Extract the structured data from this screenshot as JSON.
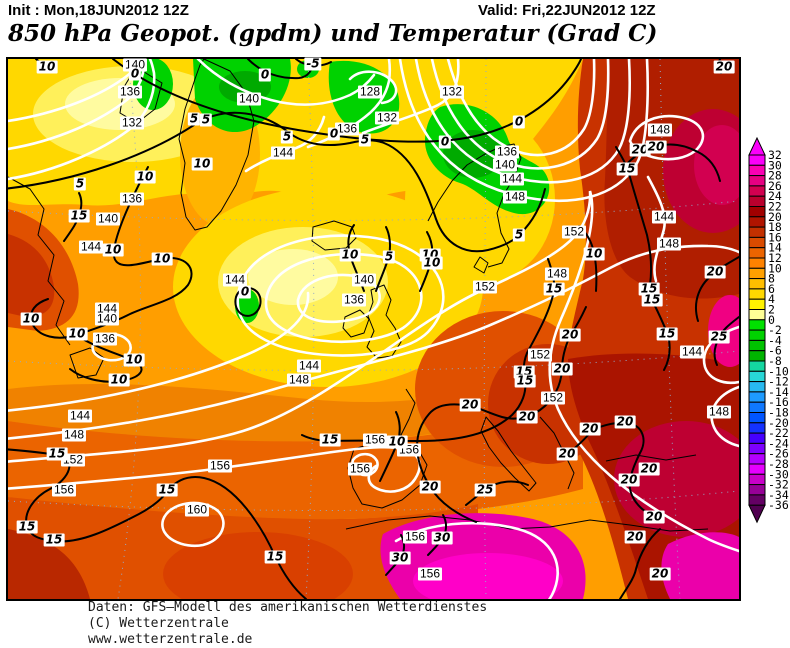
{
  "header": {
    "init": "Init : Mon,18JUN2012 12Z",
    "valid": "Valid: Fri,22JUN2012 12Z",
    "title": "850 hPa Geopot. (gpdm) und Temperatur (Grad C)"
  },
  "footer": {
    "line1": "Daten: GFS—Modell des amerikanischen Wetterdienstes",
    "line2": "(C) Wetterzentrale",
    "line3": "www.wetterzentrale.de"
  },
  "colorbar": {
    "unit": "Grad C",
    "above_max_color": "#fa00fa",
    "below_min_color": "#500050",
    "tick_labels": [
      "32",
      "30",
      "28",
      "26",
      "24",
      "22",
      "20",
      "18",
      "16",
      "14",
      "12",
      "10",
      "8",
      "6",
      "4",
      "2",
      "0",
      "-2",
      "-4",
      "-6",
      "-8",
      "-10",
      "-12",
      "-14",
      "-16",
      "-18",
      "-20",
      "-22",
      "-24",
      "-26",
      "-28",
      "-30",
      "-32",
      "-34",
      "-36"
    ],
    "segment_colors": [
      "#fa00fa",
      "#fa00b4",
      "#e60082",
      "#d20050",
      "#b9002d",
      "#a00000",
      "#b01400",
      "#c33000",
      "#d94b00",
      "#eb6400",
      "#ff8200",
      "#ffa000",
      "#ffbe00",
      "#ffd800",
      "#fff200",
      "#ffff96",
      "#00e100",
      "#00d200",
      "#00c300",
      "#00b400",
      "#14d7a0",
      "#28d7d7",
      "#28b9f0",
      "#1e9bff",
      "#0f78ff",
      "#0055ff",
      "#1432ff",
      "#4600ff",
      "#7d00ff",
      "#b400ff",
      "#e600ff",
      "#c800c8",
      "#960096",
      "#640064"
    ]
  },
  "map": {
    "geopotential_unit": "gpdm",
    "temperature_unit": "Grad C",
    "geopotential_labels": [
      [
        140,
        127,
        6
      ],
      [
        136,
        122,
        33
      ],
      [
        132,
        124,
        64
      ],
      [
        140,
        241,
        40
      ],
      [
        128,
        362,
        33
      ],
      [
        132,
        379,
        59
      ],
      [
        136,
        339,
        70
      ],
      [
        132,
        444,
        33
      ],
      [
        144,
        275,
        94
      ],
      [
        136,
        499,
        93
      ],
      [
        140,
        497,
        106
      ],
      [
        144,
        504,
        120
      ],
      [
        148,
        507,
        138
      ],
      [
        148,
        652,
        71
      ],
      [
        152,
        566,
        173
      ],
      [
        144,
        656,
        158
      ],
      [
        148,
        661,
        185
      ],
      [
        136,
        124,
        140
      ],
      [
        140,
        100,
        160
      ],
      [
        144,
        83,
        188
      ],
      [
        144,
        99,
        250
      ],
      [
        140,
        99,
        260
      ],
      [
        144,
        227,
        221
      ],
      [
        140,
        356,
        221
      ],
      [
        136,
        346,
        241
      ],
      [
        144,
        301,
        307
      ],
      [
        148,
        291,
        321
      ],
      [
        152,
        477,
        228
      ],
      [
        148,
        549,
        215
      ],
      [
        152,
        532,
        296
      ],
      [
        152,
        545,
        339
      ],
      [
        144,
        684,
        293
      ],
      [
        148,
        711,
        353
      ],
      [
        144,
        72,
        357
      ],
      [
        148,
        66,
        376
      ],
      [
        152,
        65,
        401
      ],
      [
        156,
        56,
        431
      ],
      [
        160,
        189,
        451
      ],
      [
        156,
        212,
        407
      ],
      [
        156,
        367,
        381
      ],
      [
        156,
        401,
        391
      ],
      [
        156,
        352,
        410
      ],
      [
        156,
        407,
        478
      ],
      [
        156,
        422,
        515
      ],
      [
        136,
        97,
        280
      ]
    ],
    "temperature_labels": [
      [
        10,
        39,
        8
      ],
      [
        0,
        127,
        15
      ],
      [
        0,
        257,
        16
      ],
      [
        -5,
        305,
        5
      ],
      [
        5,
        186,
        60
      ],
      [
        5,
        198,
        61
      ],
      [
        5,
        279,
        78
      ],
      [
        0,
        326,
        75
      ],
      [
        5,
        357,
        81
      ],
      [
        0,
        437,
        83
      ],
      [
        0,
        511,
        63
      ],
      [
        5,
        72,
        125
      ],
      [
        10,
        137,
        118
      ],
      [
        10,
        194,
        105
      ],
      [
        15,
        71,
        157
      ],
      [
        10,
        105,
        191
      ],
      [
        10,
        154,
        200
      ],
      [
        5,
        511,
        176
      ],
      [
        5,
        381,
        198
      ],
      [
        10,
        342,
        196
      ],
      [
        10,
        422,
        196
      ],
      [
        10,
        424,
        204
      ],
      [
        10,
        586,
        195
      ],
      [
        15,
        619,
        110
      ],
      [
        20,
        632,
        91
      ],
      [
        20,
        648,
        88
      ],
      [
        20,
        716,
        8
      ],
      [
        0,
        237,
        233
      ],
      [
        10,
        23,
        260
      ],
      [
        10,
        69,
        275
      ],
      [
        10,
        126,
        301
      ],
      [
        10,
        111,
        321
      ],
      [
        15,
        546,
        230
      ],
      [
        20,
        707,
        213
      ],
      [
        15,
        641,
        230
      ],
      [
        15,
        644,
        241
      ],
      [
        15,
        659,
        275
      ],
      [
        25,
        711,
        278
      ],
      [
        15,
        516,
        313
      ],
      [
        15,
        517,
        322
      ],
      [
        20,
        562,
        276
      ],
      [
        20,
        554,
        310
      ],
      [
        15,
        49,
        395
      ],
      [
        15,
        19,
        468
      ],
      [
        15,
        46,
        481
      ],
      [
        15,
        159,
        431
      ],
      [
        15,
        267,
        498
      ],
      [
        10,
        389,
        383
      ],
      [
        15,
        322,
        381
      ],
      [
        20,
        462,
        346
      ],
      [
        20,
        519,
        358
      ],
      [
        20,
        582,
        370
      ],
      [
        20,
        617,
        363
      ],
      [
        20,
        559,
        395
      ],
      [
        20,
        641,
        410
      ],
      [
        20,
        621,
        421
      ],
      [
        20,
        422,
        428
      ],
      [
        25,
        477,
        431
      ],
      [
        20,
        646,
        458
      ],
      [
        20,
        627,
        478
      ],
      [
        20,
        652,
        515
      ],
      [
        30,
        434,
        479
      ],
      [
        30,
        392,
        499
      ]
    ],
    "fill_palette": {
      "warm_orange": "#ff9e00",
      "yellow": "#ffd800",
      "pale_yellow": "#fff05a",
      "deep_orange": "#eb6400",
      "red": "#c83200",
      "dark_red": "#aa1400",
      "crimson": "#be0032",
      "magenta": "#eb00aa",
      "hot_magenta": "#ff00c8",
      "cold_green": "#00d200",
      "dark_green": "#00aa00"
    }
  }
}
